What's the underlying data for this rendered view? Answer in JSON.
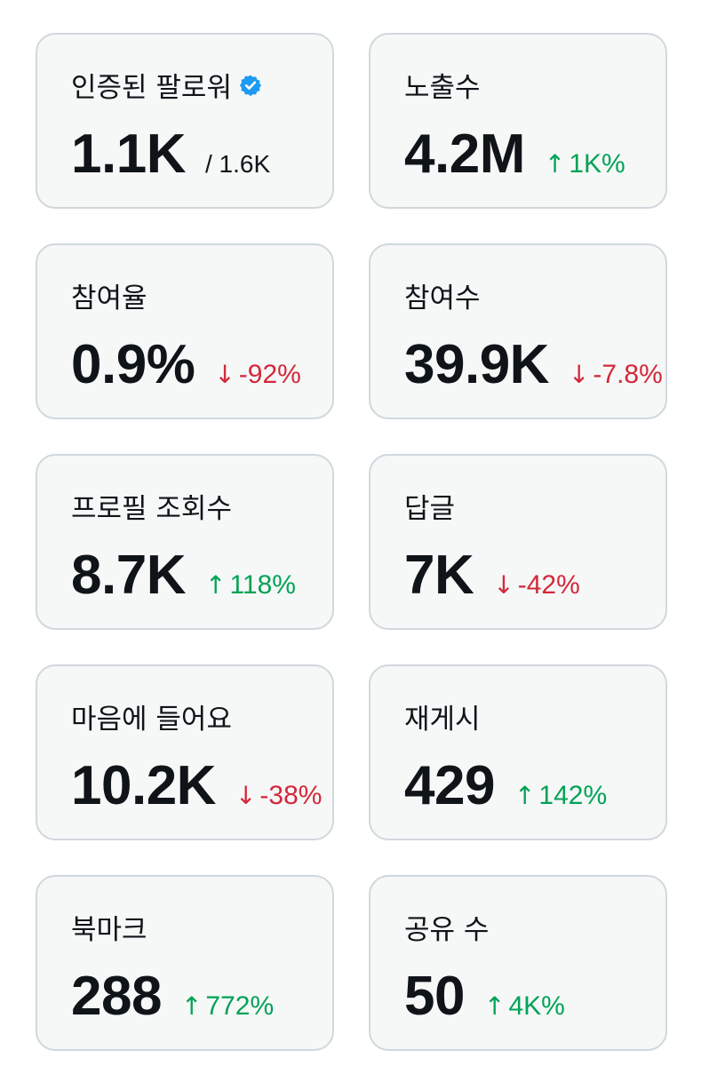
{
  "colors": {
    "card_background": "#f6f7f7",
    "card_border": "#d0d8dd",
    "text_primary": "#0f1419",
    "positive": "#00a356",
    "negative": "#d2293a",
    "verified_badge": "#1d9bf0"
  },
  "metrics": [
    {
      "label": "인증된 팔로워",
      "icon": "verified-badge-icon",
      "value": "1.1K",
      "sub": "/ 1.6K"
    },
    {
      "label": "노출수",
      "value": "4.2M",
      "arrow": "↑",
      "change": "1K%",
      "trend": "up"
    },
    {
      "label": "참여율",
      "value": "0.9%",
      "arrow": "↓",
      "change": "-92%",
      "trend": "down"
    },
    {
      "label": "참여수",
      "value": "39.9K",
      "arrow": "↓",
      "change": "-7.8%",
      "trend": "down"
    },
    {
      "label": "프로필 조회수",
      "value": "8.7K",
      "arrow": "↑",
      "change": "118%",
      "trend": "up"
    },
    {
      "label": "답글",
      "value": "7K",
      "arrow": "↓",
      "change": "-42%",
      "trend": "down"
    },
    {
      "label": "마음에 들어요",
      "value": "10.2K",
      "arrow": "↓",
      "change": "-38%",
      "trend": "down"
    },
    {
      "label": "재게시",
      "value": "429",
      "arrow": "↑",
      "change": "142%",
      "trend": "up"
    },
    {
      "label": "북마크",
      "value": "288",
      "arrow": "↑",
      "change": "772%",
      "trend": "up"
    },
    {
      "label": "공유 수",
      "value": "50",
      "arrow": "↑",
      "change": "4K%",
      "trend": "up"
    }
  ]
}
